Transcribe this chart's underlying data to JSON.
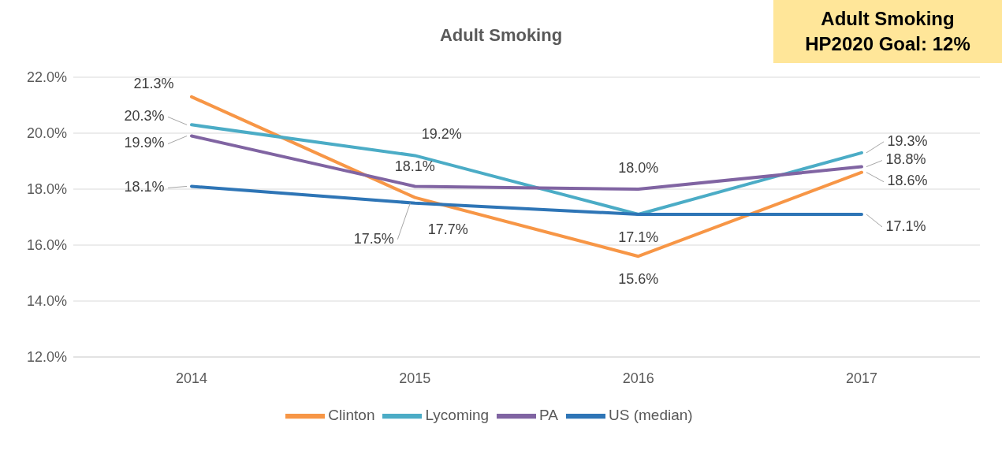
{
  "chart_data": {
    "type": "line",
    "title": "Adult Smoking",
    "categories": [
      "2014",
      "2015",
      "2016",
      "2017"
    ],
    "series": [
      {
        "name": "Clinton",
        "color": "#f79646",
        "values": [
          21.3,
          17.7,
          15.6,
          18.6
        ],
        "value_labels": [
          "21.3%",
          "17.7%",
          "15.6%",
          "18.6%"
        ]
      },
      {
        "name": "Lycoming",
        "color": "#4bacc6",
        "values": [
          20.3,
          19.2,
          17.1,
          19.3
        ],
        "value_labels": [
          "20.3%",
          "19.2%",
          "17.1%",
          "19.3%"
        ]
      },
      {
        "name": "PA",
        "color": "#8064a2",
        "values": [
          19.9,
          18.1,
          18.0,
          18.8
        ],
        "value_labels": [
          "19.9%",
          "18.1%",
          "18.0%",
          "18.8%"
        ]
      },
      {
        "name": "US (median)",
        "color": "#2e75b6",
        "values": [
          18.1,
          17.5,
          17.1,
          17.1
        ],
        "value_labels": [
          "18.1%",
          "17.5%",
          null,
          "17.1%"
        ]
      }
    ],
    "ylim": [
      12,
      22
    ],
    "yticks": [
      {
        "value": 12,
        "label": "12.0%"
      },
      {
        "value": 14,
        "label": "14.0%"
      },
      {
        "value": 16,
        "label": "16.0%"
      },
      {
        "value": 18,
        "label": "18.0%"
      },
      {
        "value": 20,
        "label": "20.0%"
      },
      {
        "value": 22,
        "label": "22.0%"
      }
    ],
    "grid": "y",
    "legend": "bottom",
    "marker": "none",
    "line_style": "solid",
    "annotations": [
      "Adult Smoking\nHP2020 Goal: 12%"
    ]
  }
}
